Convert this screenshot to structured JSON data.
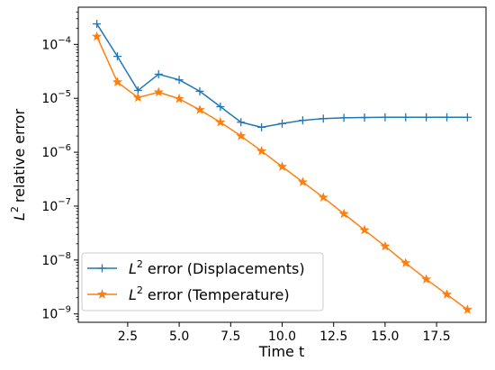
{
  "chart_data": {
    "type": "line",
    "title": "",
    "xlabel": "Time t",
    "ylabel": "relative error",
    "ylabel_prefix": "L",
    "ylabel_sup": "2",
    "x_scale": "linear",
    "y_scale": "log",
    "xlim": [
      0.1,
      19.9
    ],
    "ylim": [
      7e-10,
      0.00049
    ],
    "grid": false,
    "legend_position": "lower-left",
    "x_ticks": [
      {
        "value": 2.5,
        "label": "2.5"
      },
      {
        "value": 5.0,
        "label": "5.0"
      },
      {
        "value": 7.5,
        "label": "7.5"
      },
      {
        "value": 10.0,
        "label": "10.0"
      },
      {
        "value": 12.5,
        "label": "12.5"
      },
      {
        "value": 15.0,
        "label": "15.0"
      },
      {
        "value": 17.5,
        "label": "17.5"
      }
    ],
    "y_ticks": [
      {
        "value": 1e-09,
        "base": "10",
        "exp": "−9"
      },
      {
        "value": 1e-08,
        "base": "10",
        "exp": "−8"
      },
      {
        "value": 1e-07,
        "base": "10",
        "exp": "−7"
      },
      {
        "value": 1e-06,
        "base": "10",
        "exp": "−6"
      },
      {
        "value": 1e-05,
        "base": "10",
        "exp": "−5"
      },
      {
        "value": 0.0001,
        "base": "10",
        "exp": "−4"
      }
    ],
    "x": [
      1,
      2,
      3,
      4,
      5,
      6,
      7,
      8,
      9,
      10,
      11,
      12,
      13,
      14,
      15,
      16,
      17,
      18,
      19
    ],
    "series": [
      {
        "name": "error (Displacements)",
        "name_prefix": "L",
        "name_sup": "2",
        "color": "#1f77b4",
        "marker": "plus",
        "values": [
          0.00024,
          6e-05,
          1.4e-05,
          2.8e-05,
          2.2e-05,
          1.35e-05,
          7e-06,
          3.6e-06,
          2.9e-06,
          3.4e-06,
          3.9e-06,
          4.2e-06,
          4.35e-06,
          4.4e-06,
          4.45e-06,
          4.45e-06,
          4.45e-06,
          4.45e-06,
          4.45e-06
        ]
      },
      {
        "name": "error (Temperature)",
        "name_prefix": "L",
        "name_sup": "2",
        "color": "#ff7f0e",
        "marker": "star",
        "values": [
          0.00014,
          2e-05,
          1.03e-05,
          1.3e-05,
          9.8e-06,
          6.1e-06,
          3.6e-06,
          2e-06,
          1.05e-06,
          5.4e-07,
          2.8e-07,
          1.45e-07,
          7.2e-08,
          3.6e-08,
          1.8e-08,
          8.8e-09,
          4.4e-09,
          2.3e-09,
          1.2e-09
        ]
      }
    ]
  }
}
